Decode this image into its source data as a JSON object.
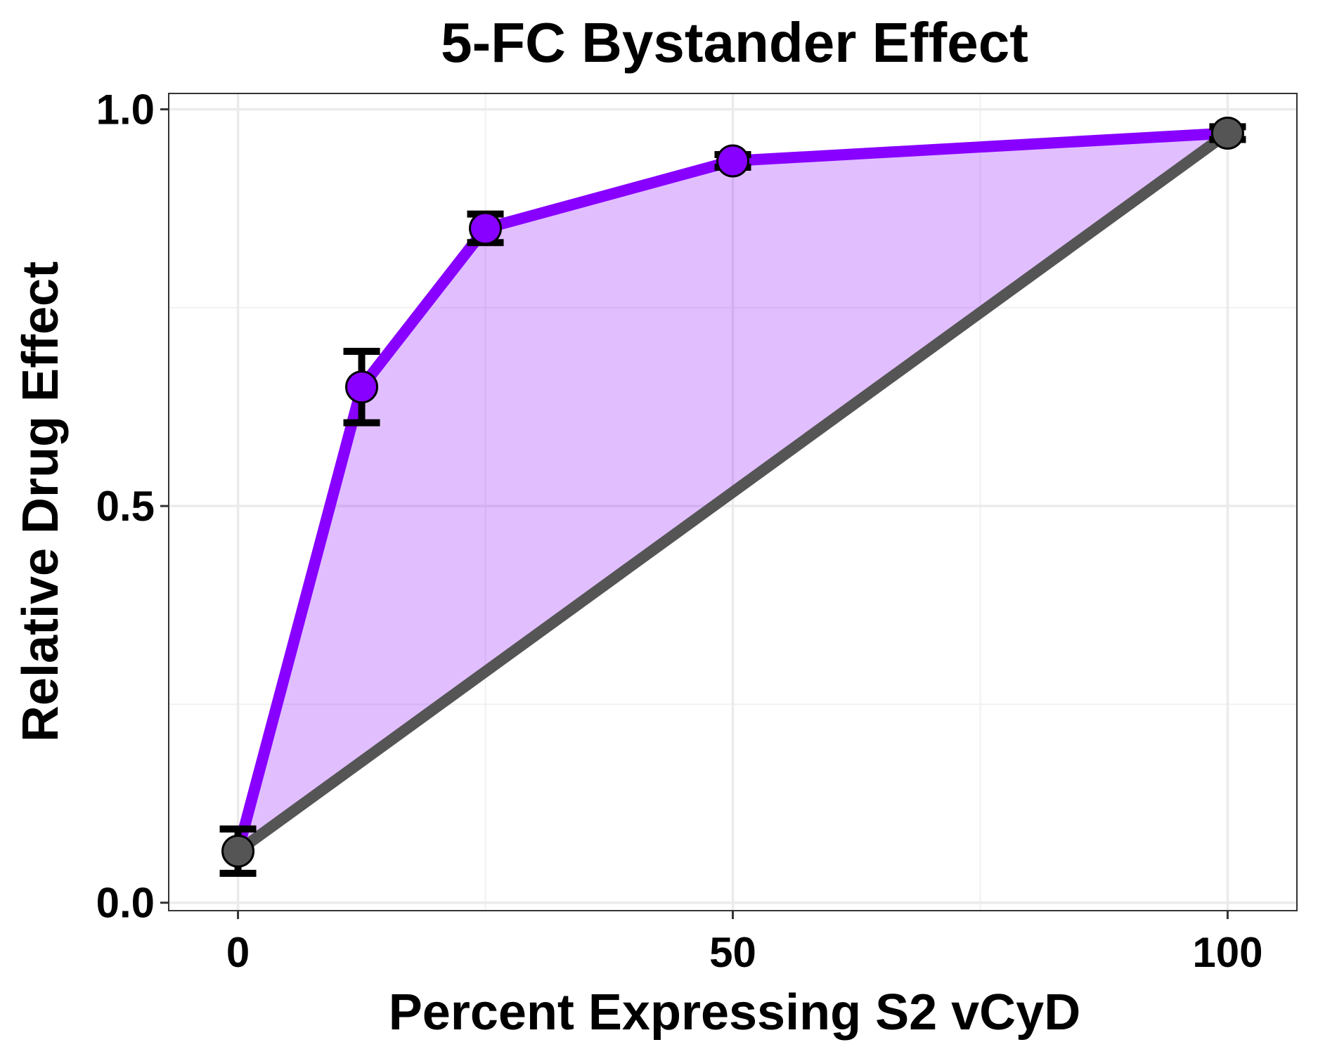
{
  "chart_data": {
    "type": "line",
    "title": "5-FC Bystander Effect",
    "xlabel": "Percent Expressing S2 vCyD",
    "ylabel": "Relative Drug Effect",
    "xlim": [
      -7,
      107
    ],
    "ylim": [
      -0.01,
      1.02
    ],
    "x_ticks": [
      0,
      50,
      100
    ],
    "x_tick_labels": [
      "0",
      "50",
      "100"
    ],
    "y_ticks": [
      0,
      0.5,
      1
    ],
    "y_tick_labels": [
      "0.0",
      "0.5",
      "1.0"
    ],
    "x_minor": [
      25,
      75
    ],
    "y_minor": [
      0.25,
      0.75
    ],
    "grid": true,
    "series": [
      {
        "color": "#8800ff",
        "x": [
          0,
          12.5,
          25,
          50,
          100
        ],
        "y": [
          0.065,
          0.65,
          0.85,
          0.935,
          0.97
        ],
        "err": [
          0.028,
          0.045,
          0.018,
          0.008,
          0.008
        ],
        "point_colors": [
          "#555555",
          "#8800ff",
          "#8800ff",
          "#8800ff",
          "#555555"
        ]
      },
      {
        "color": "#555555",
        "x": [
          0,
          100
        ],
        "y": [
          0.065,
          0.97
        ]
      }
    ],
    "fill": {
      "color": "#8800ff",
      "opacity": 0.25
    }
  }
}
